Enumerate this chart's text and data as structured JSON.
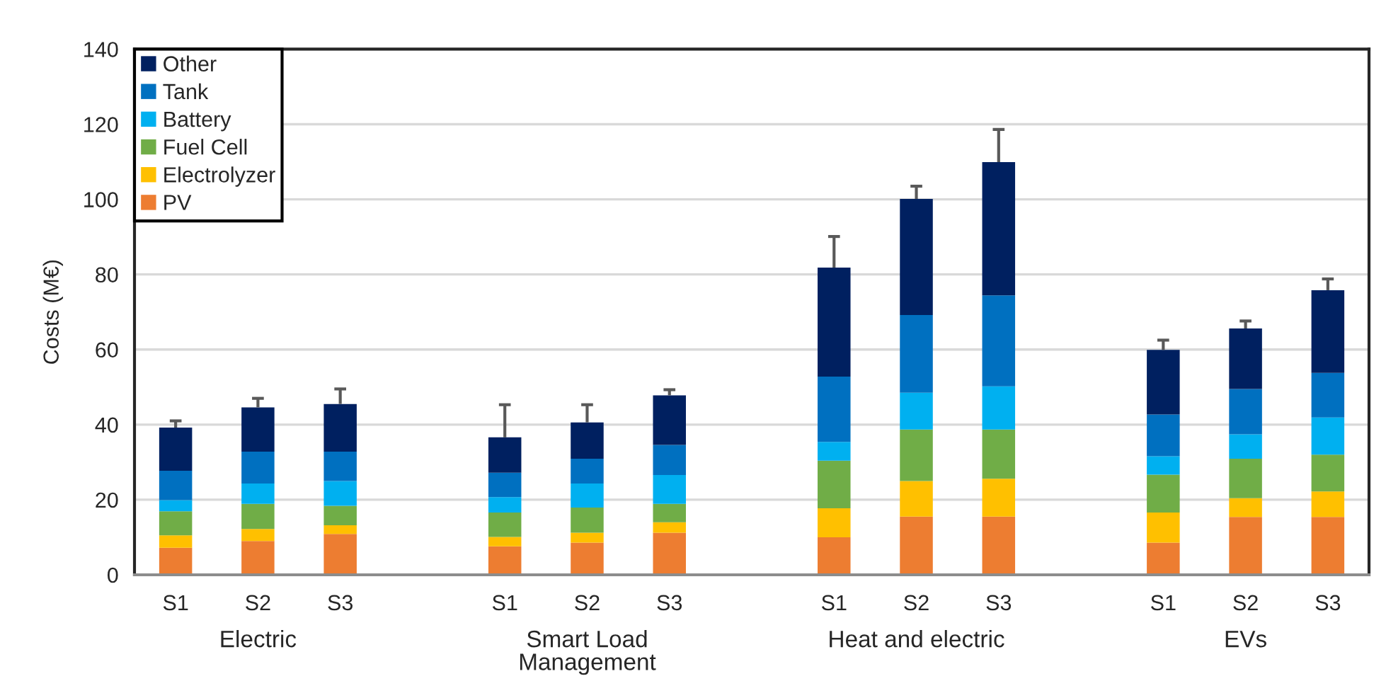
{
  "chart_data": {
    "type": "bar",
    "stacked": true,
    "ylabel": "Costs (M€)",
    "categories": [
      "S1",
      "S2",
      "S3",
      null,
      "S1",
      "S2",
      "S3",
      null,
      "S1",
      "S2",
      "S3",
      null,
      "S1",
      "S2",
      "S3"
    ],
    "series": [
      {
        "name": "PV",
        "color": "#ed7d31",
        "values": [
          7.2,
          9.0,
          10.9,
          null,
          7.6,
          8.6,
          11.2,
          null,
          10.0,
          15.5,
          15.5,
          null,
          8.6,
          15.4,
          15.4
        ]
      },
      {
        "name": "Electrolyzer",
        "color": "#ffc000",
        "values": [
          3.3,
          3.2,
          2.3,
          null,
          2.5,
          2.6,
          2.8,
          null,
          7.7,
          9.5,
          10.1,
          null,
          8.0,
          5.0,
          6.8
        ]
      },
      {
        "name": "Fuel Cell",
        "color": "#70ad47",
        "values": [
          6.4,
          6.7,
          5.2,
          null,
          6.5,
          6.7,
          4.9,
          null,
          12.7,
          13.7,
          13.1,
          null,
          10.1,
          10.5,
          9.8
        ]
      },
      {
        "name": "Battery",
        "color": "#00b0f0",
        "values": [
          3.0,
          5.4,
          6.6,
          null,
          4.1,
          6.4,
          7.7,
          null,
          5.0,
          9.8,
          11.5,
          null,
          4.9,
          6.5,
          9.9
        ]
      },
      {
        "name": "Tank",
        "color": "#0070c0",
        "values": [
          7.8,
          8.5,
          7.8,
          null,
          6.5,
          6.6,
          8.0,
          null,
          17.4,
          20.7,
          24.2,
          null,
          11.1,
          12.1,
          11.9
        ]
      },
      {
        "name": "Other",
        "color": "#002060",
        "values": [
          11.5,
          11.8,
          12.7,
          null,
          9.4,
          9.7,
          13.2,
          null,
          29.0,
          30.9,
          35.5,
          null,
          17.2,
          16.1,
          22.0
        ],
        "errors": [
          [
            39.2,
            41.0
          ],
          [
            44.6,
            47.0
          ],
          [
            45.5,
            49.5
          ],
          null,
          [
            36.6,
            45.3
          ],
          [
            40.6,
            45.3
          ],
          [
            47.8,
            49.3
          ],
          null,
          [
            81.8,
            90.1
          ],
          [
            100.1,
            103.5
          ],
          [
            109.9,
            118.6
          ],
          null,
          [
            59.9,
            62.5
          ],
          [
            65.6,
            67.6
          ],
          [
            75.8,
            78.8
          ]
        ]
      }
    ],
    "ylim": [
      0,
      140
    ],
    "yticks": [
      0,
      20,
      40,
      60,
      80,
      100,
      120,
      140
    ],
    "grid": "y",
    "legend": "top left",
    "annotations": [
      "Electric",
      "Smart Load\nManagement",
      "Heat and electric",
      "EVs"
    ]
  }
}
